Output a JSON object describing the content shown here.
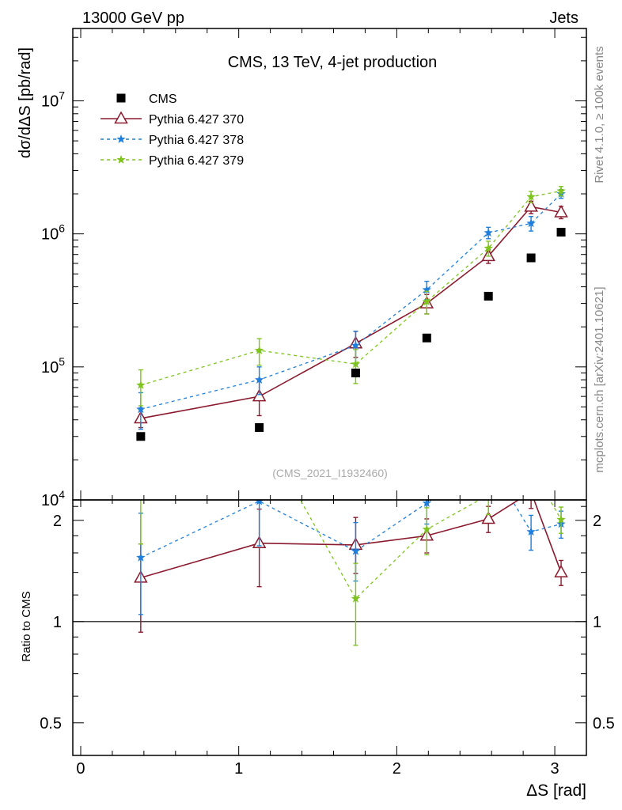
{
  "header": {
    "left": "13000 GeV pp",
    "right": "Jets"
  },
  "side_labels": {
    "rivet": "Rivet 4.1.0, ≥ 100k events",
    "mcplots": "mcplots.cern.ch [arXiv:2401.10621]"
  },
  "chart_data": {
    "type": "line",
    "title": "CMS, 13 TeV, 4-jet production",
    "watermark": "(CMS_2021_I1932460)",
    "xlabel": "ΔS [rad]",
    "ylabel": "dσ/dΔS [pb/rad]",
    "ratio_ylabel": "Ratio to CMS",
    "xlim": [
      -0.05,
      3.2
    ],
    "ylim": [
      10000,
      35000000
    ],
    "ratio_ylim": [
      0.4,
      2.3
    ],
    "x_ticks": [
      "0",
      "1",
      "2",
      "3"
    ],
    "y_ticks": [
      {
        "base": "10",
        "exp": "4",
        "value": 10000
      },
      {
        "base": "10",
        "exp": "5",
        "value": 100000
      },
      {
        "base": "10",
        "exp": "6",
        "value": 1000000
      },
      {
        "base": "10",
        "exp": "7",
        "value": 10000000
      }
    ],
    "ratio_ticks": [
      {
        "label": "0.5",
        "value": 0.5
      },
      {
        "label": "1",
        "value": 1
      },
      {
        "label": "2",
        "value": 2
      }
    ],
    "x": [
      0.38,
      1.13,
      1.74,
      2.19,
      2.58,
      2.85,
      3.04
    ],
    "legend_position": "top-left",
    "data": {
      "name": "CMS",
      "color": "#000000",
      "values": [
        30000,
        35000,
        90000,
        165000,
        340000,
        660000,
        1030000
      ]
    },
    "series": [
      {
        "name": "Pythia 6.427 370",
        "color": "#8b1a2e",
        "dash": "solid",
        "marker": "triangle",
        "values": [
          41000,
          60000,
          150000,
          300000,
          680000,
          1600000,
          1450000
        ],
        "err_low": [
          6000,
          17000,
          32000,
          50000,
          80000,
          180000,
          150000
        ],
        "err_high": [
          8000,
          20000,
          35000,
          50000,
          80000,
          160000,
          160000
        ],
        "ratio": [
          1.35,
          1.71,
          1.69,
          1.8,
          2.02,
          2.43,
          1.4
        ],
        "ratio_err_low": [
          0.42,
          0.44,
          0.3,
          0.2,
          0.18,
          0.26,
          0.12
        ],
        "ratio_err_high": [
          0.35,
          0.45,
          0.35,
          0.22,
          0.18,
          0.24,
          0.12
        ]
      },
      {
        "name": "Pythia 6.427 378",
        "color": "#1f7fdc",
        "dash": "4 4",
        "marker": "star",
        "values": [
          48000,
          80000,
          145000,
          380000,
          1020000,
          1200000,
          2000000
        ],
        "err_low": [
          14000,
          18000,
          40000,
          60000,
          100000,
          150000,
          150000
        ],
        "err_high": [
          16000,
          20000,
          40000,
          60000,
          100000,
          150000,
          150000
        ],
        "ratio": [
          1.55,
          2.28,
          1.62,
          2.25,
          3.0,
          1.85,
          1.95
        ],
        "ratio_err_low": [
          0.5,
          0.6,
          0.3,
          0.3,
          0.3,
          0.22,
          0.18
        ],
        "ratio_err_high": [
          0.55,
          0.6,
          0.35,
          0.3,
          0.3,
          0.22,
          0.18
        ]
      },
      {
        "name": "Pythia 6.427 379",
        "color": "#7ec41c",
        "dash": "4 4",
        "marker": "star",
        "values": [
          73000,
          133000,
          105000,
          310000,
          780000,
          1900000,
          2100000
        ],
        "err_low": [
          22000,
          30000,
          30000,
          60000,
          100000,
          180000,
          170000
        ],
        "err_high": [
          22000,
          30000,
          30000,
          60000,
          100000,
          180000,
          170000
        ],
        "ratio": [
          2.4,
          3.8,
          1.17,
          1.88,
          2.38,
          2.88,
          2.01
        ],
        "ratio_err_low": [
          0.7,
          0.8,
          0.32,
          0.3,
          0.3,
          0.3,
          0.18
        ],
        "ratio_err_high": [
          0.7,
          0.8,
          0.32,
          0.3,
          0.3,
          0.3,
          0.18
        ]
      }
    ]
  }
}
